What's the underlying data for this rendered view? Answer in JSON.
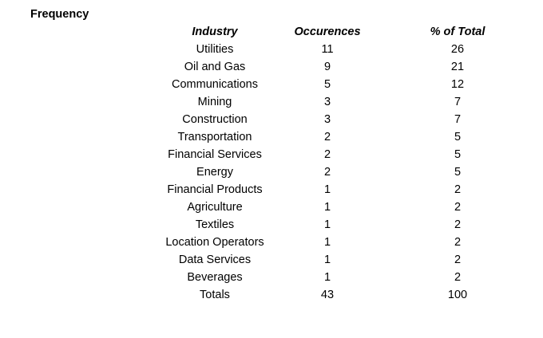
{
  "title": "Frequency",
  "table": {
    "header": [
      "Industry",
      "Occurences",
      "% of Total"
    ],
    "rows": [
      [
        "Utilities",
        11,
        26
      ],
      [
        "Oil and Gas",
        9,
        21
      ],
      [
        "Communications",
        5,
        12
      ],
      [
        "Mining",
        3,
        7
      ],
      [
        "Construction",
        3,
        7
      ],
      [
        "Transportation",
        2,
        5
      ],
      [
        "Financial Services",
        2,
        5
      ],
      [
        "Energy",
        2,
        5
      ],
      [
        "Financial Products",
        1,
        2
      ],
      [
        "Agriculture",
        1,
        2
      ],
      [
        "Textiles",
        1,
        2
      ],
      [
        "Location Operators",
        1,
        2
      ],
      [
        "Data Services",
        1,
        2
      ],
      [
        "Beverages",
        1,
        2
      ],
      [
        "Totals",
        43,
        100
      ]
    ]
  }
}
